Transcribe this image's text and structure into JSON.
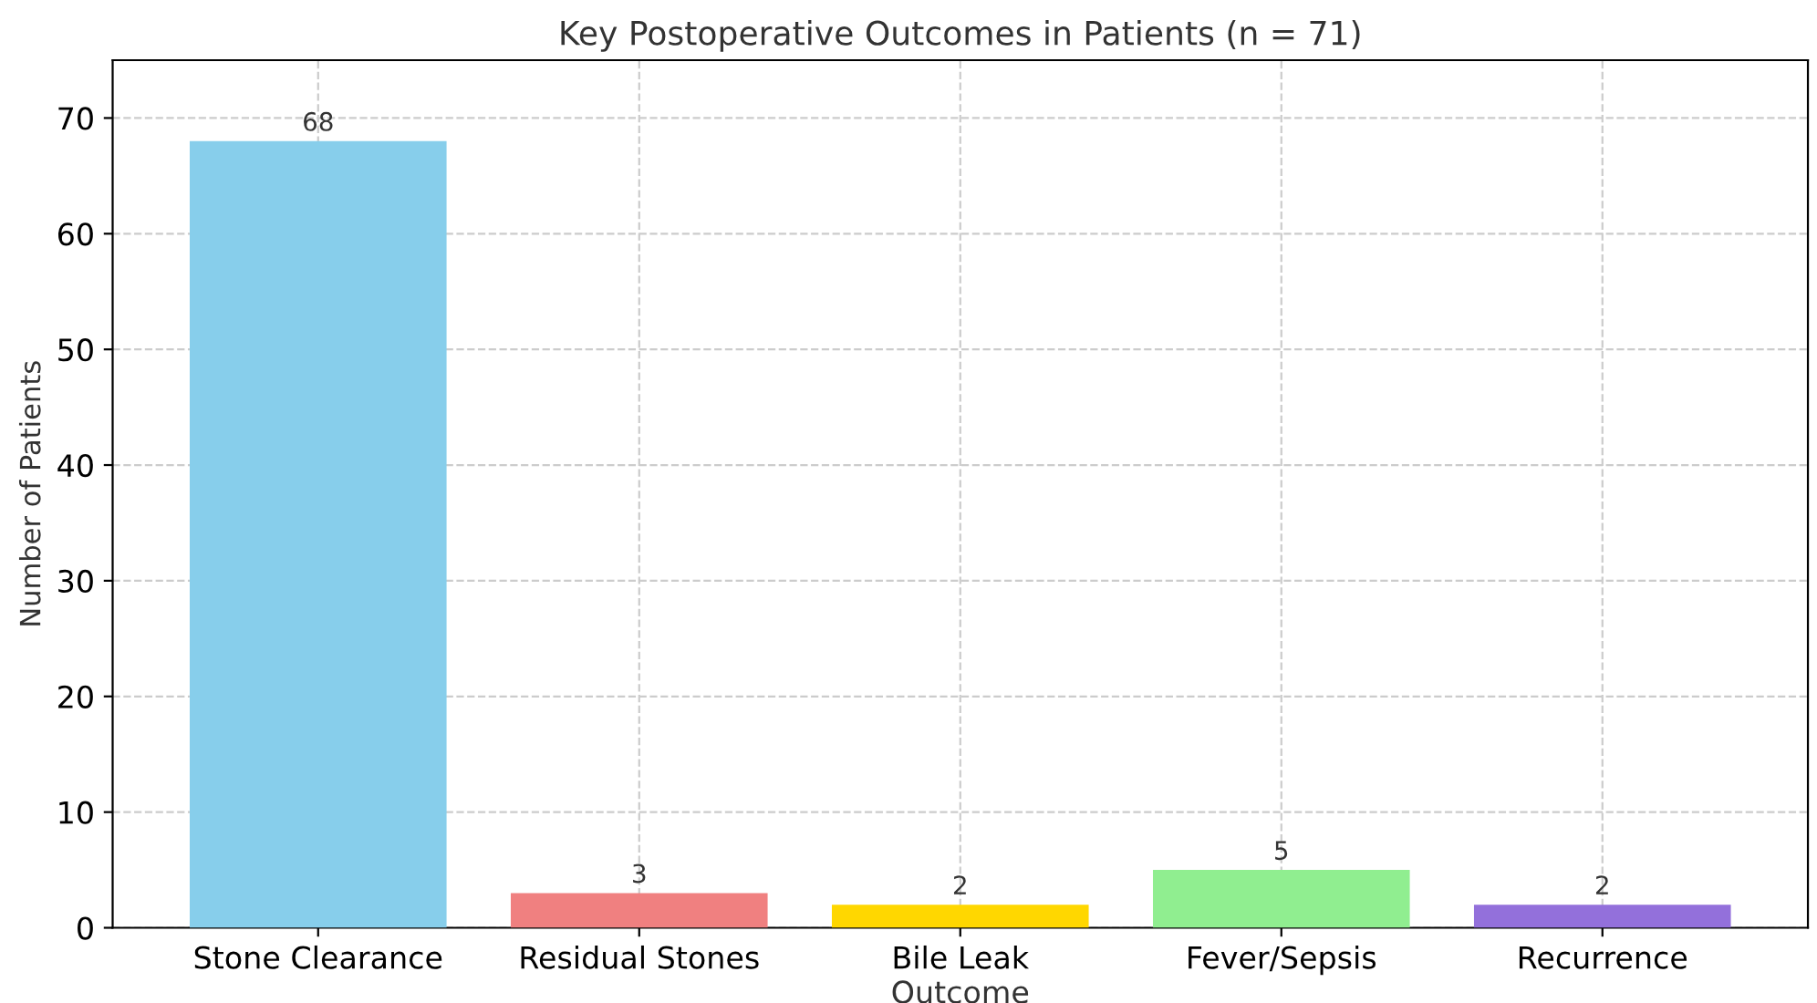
{
  "chart_data": {
    "type": "bar",
    "title": "Key Postoperative Outcomes in Patients (n = 71)",
    "xlabel": "Outcome",
    "ylabel": "Number of Patients",
    "categories": [
      "Stone Clearance",
      "Residual Stones",
      "Bile Leak",
      "Fever/Sepsis",
      "Recurrence"
    ],
    "values": [
      68,
      3,
      2,
      5,
      2
    ],
    "colors": [
      "#87ceeb",
      "#f08080",
      "#ffd700",
      "#90ee90",
      "#9370db"
    ],
    "ylim": [
      0,
      75
    ],
    "yticks": [
      0,
      10,
      20,
      30,
      40,
      50,
      60,
      70
    ],
    "grid": true,
    "data_labels": true
  }
}
